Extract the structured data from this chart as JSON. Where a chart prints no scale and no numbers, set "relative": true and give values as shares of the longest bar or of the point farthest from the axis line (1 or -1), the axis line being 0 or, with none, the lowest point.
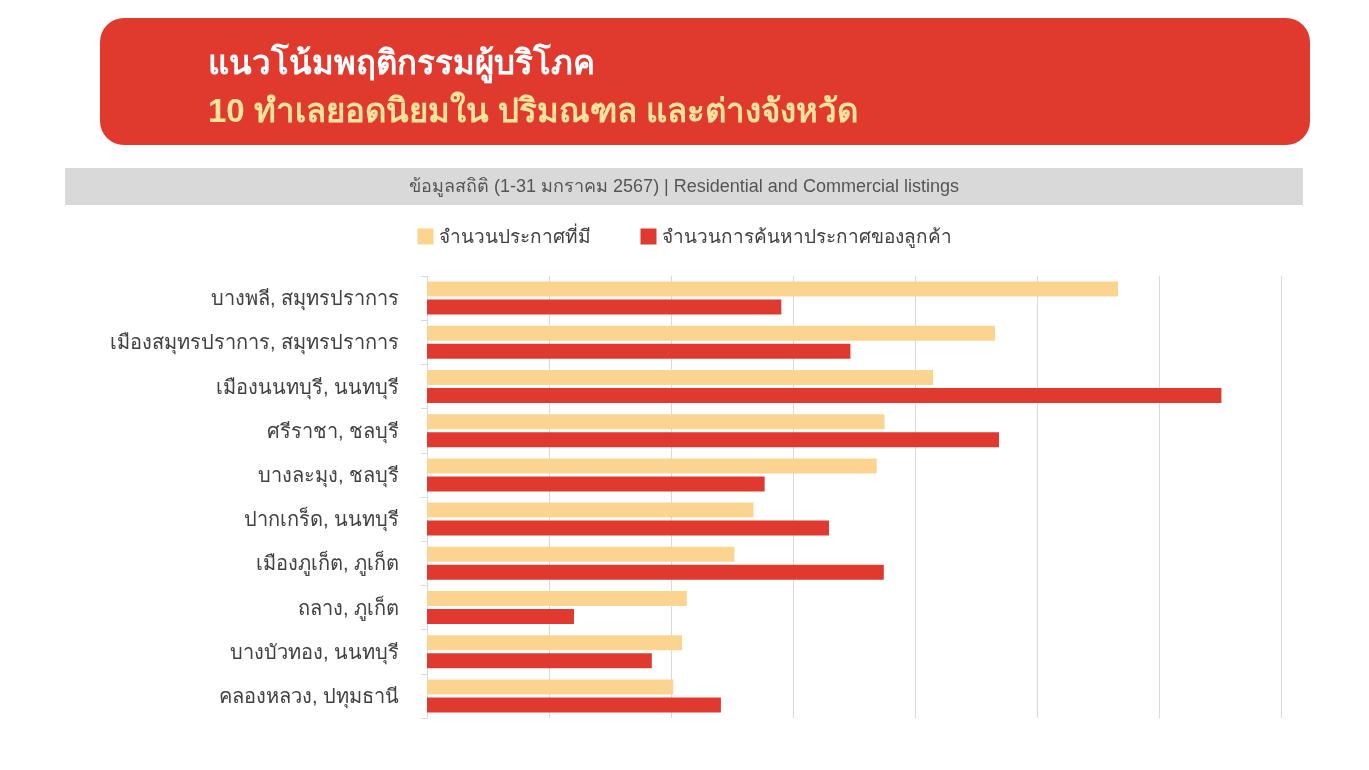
{
  "chart_data": {
    "type": "bar",
    "orientation": "horizontal",
    "relative": true,
    "title": "แนวโน้มพฤติกรรมผู้บริโภค",
    "subtitle": "10 ทำเลยอดนิยมใน ปริมณฑล และต่างจังหวัด",
    "annotations": [
      "ข้อมูลสถิติ (1-31 มกราคม 2567) | Residential and Commercial listings"
    ],
    "categories": [
      "บางพลี, สมุทรปราการ",
      "เมืองสมุทรปราการ, สมุทรปราการ",
      "เมืองนนทบุรี, นนทบุรี",
      "ศรีราชา, ชลบุรี",
      "บางละมุง, ชลบุรี",
      "ปากเกร็ด, นนทบุรี",
      "เมืองภูเก็ต, ภูเก็ต",
      "ถลาง, ภูเก็ต",
      "บางบัวทอง, นนทบุรี",
      "คลองหลวง, ปทุมธานี"
    ],
    "series": [
      {
        "name": "จำนวนประกาศที่มี",
        "color": "#fbd58f",
        "values": [
          0.87,
          0.715,
          0.637,
          0.576,
          0.566,
          0.411,
          0.387,
          0.327,
          0.321,
          0.31
        ]
      },
      {
        "name": "จำนวนการค้นหาประกาศของลูกค้า",
        "color": "#e0392f",
        "values": [
          0.446,
          0.533,
          1,
          0.72,
          0.425,
          0.506,
          0.575,
          0.185,
          0.283,
          0.37
        ]
      }
    ],
    "grid": "x",
    "legend": "top"
  }
}
